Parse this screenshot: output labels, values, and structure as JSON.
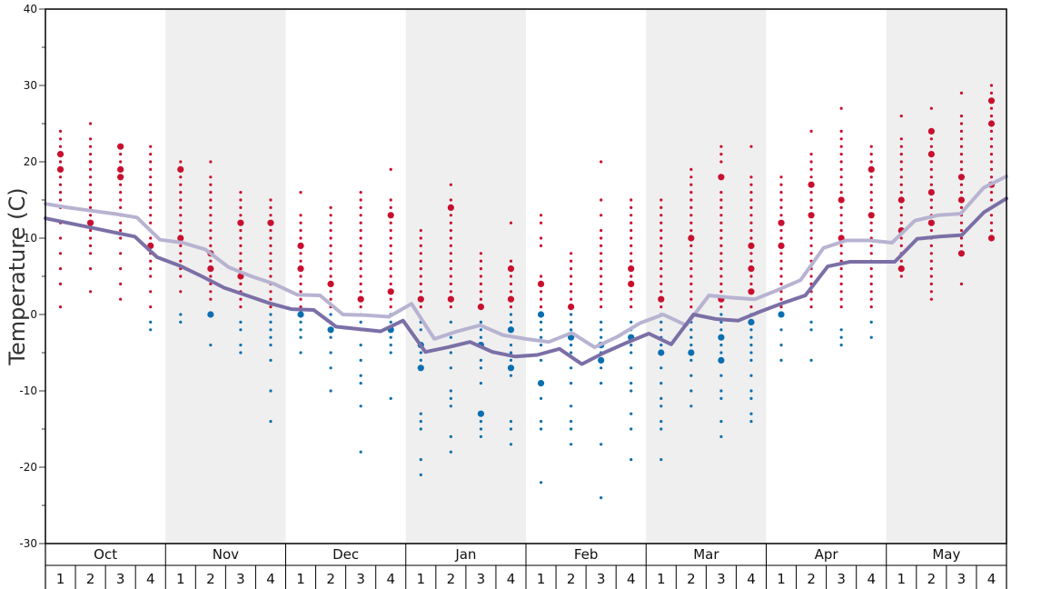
{
  "chart_data": {
    "type": "scatter",
    "ylabel": "Temperature (C)",
    "ylim": [
      -30,
      40
    ],
    "yticks": [
      -30,
      -20,
      -10,
      0,
      10,
      20,
      30,
      40
    ],
    "months": [
      "Oct",
      "Nov",
      "Dec",
      "Jan",
      "Feb",
      "Mar",
      "Apr",
      "May"
    ],
    "week_labels": [
      "1",
      "2",
      "3",
      "4"
    ],
    "colors": {
      "warm": "#c8102e",
      "cold": "#0a6fb0",
      "line_light": "#b7b3d1",
      "line_dark": "#7b6fa6",
      "band": "#efefef"
    },
    "line_light": [
      14.5,
      14,
      13.6,
      13.2,
      12.7,
      9.8,
      9.4,
      8.5,
      6.2,
      5,
      4,
      2.6,
      2.5,
      0,
      -0.1,
      -0.3,
      1.4,
      -3.2,
      -2.2,
      -1.4,
      -2.7,
      -3.2,
      -3.6,
      -2.4,
      -4.3,
      -2.9,
      -1.1,
      0,
      -1.4,
      2.5,
      2.2,
      2,
      3.2,
      4.5,
      8.7,
      9.7,
      9.7,
      9.4,
      12.3,
      13,
      13.2,
      16.6,
      18.1
    ],
    "line_dark": [
      12.6,
      12,
      11.4,
      10.8,
      10.2,
      7.5,
      6.4,
      5,
      3.5,
      2.5,
      1.5,
      0.7,
      0.6,
      -1.6,
      -1.9,
      -2.2,
      -0.8,
      -4.9,
      -4.3,
      -3.6,
      -4.9,
      -5.5,
      -5.3,
      -4.5,
      -6.5,
      -5,
      -3.7,
      -2.5,
      -3.9,
      0,
      -0.6,
      -0.8,
      0.4,
      1.5,
      2.5,
      6.3,
      6.9,
      6.9,
      6.9,
      9.9,
      10.2,
      10.4,
      13.4,
      15.2
    ],
    "points": [
      [
        1,
        [
          1,
          4,
          6,
          8,
          10,
          12,
          14,
          15,
          16,
          17,
          18,
          19,
          19,
          20,
          20,
          21,
          21,
          22,
          23,
          24
        ],
        []
      ],
      [
        2,
        [
          3,
          6,
          8,
          9,
          10,
          11,
          12,
          12,
          13,
          14,
          15,
          16,
          17,
          18,
          19,
          20,
          20,
          21,
          22,
          23,
          25
        ],
        []
      ],
      [
        3,
        [
          2,
          4,
          6,
          8,
          10,
          11,
          12,
          13,
          14,
          15,
          16,
          17,
          18,
          18,
          19,
          19,
          20,
          21,
          22,
          22
        ],
        []
      ],
      [
        4,
        [
          1,
          3,
          5,
          6,
          7,
          8,
          9,
          10,
          11,
          12,
          13,
          14,
          15,
          16,
          17,
          18,
          19,
          20,
          21,
          22
        ],
        [
          -1,
          -2
        ]
      ],
      [
        5,
        [
          3,
          5,
          6,
          7,
          8,
          9,
          10,
          11,
          12,
          13,
          14,
          15,
          16,
          17,
          18,
          19,
          19,
          20
        ],
        [
          0,
          -1
        ]
      ],
      [
        6,
        [
          2,
          3,
          4,
          5,
          6,
          6,
          7,
          8,
          9,
          10,
          11,
          12,
          13,
          14,
          15,
          16,
          17,
          18,
          20
        ],
        [
          0,
          0,
          -4
        ]
      ],
      [
        7,
        [
          1,
          2,
          3,
          4,
          5,
          5,
          6,
          7,
          8,
          9,
          10,
          11,
          12,
          12,
          13,
          14,
          15,
          16
        ],
        [
          -1,
          -2,
          -4,
          -5
        ]
      ],
      [
        8,
        [
          1,
          2,
          3,
          4,
          5,
          6,
          7,
          8,
          9,
          10,
          11,
          12,
          12,
          13,
          14,
          15
        ],
        [
          0,
          -1,
          -2,
          -3,
          -4,
          -6,
          -10,
          -14
        ]
      ],
      [
        9,
        [
          1,
          2,
          3,
          4,
          5,
          6,
          6,
          7,
          8,
          9,
          9,
          10,
          11,
          12,
          13,
          16
        ],
        [
          0,
          -1,
          -2,
          -3,
          -5
        ]
      ],
      [
        10,
        [
          1,
          2,
          3,
          4,
          4,
          5,
          6,
          7,
          8,
          9,
          10,
          11,
          12,
          13,
          14
        ],
        [
          0,
          -1,
          -2,
          -3,
          -5,
          -7,
          -10
        ]
      ],
      [
        11,
        [
          1,
          2,
          2,
          3,
          4,
          5,
          6,
          7,
          8,
          8,
          9,
          10,
          11,
          12,
          13,
          14,
          15,
          16
        ],
        [
          0,
          -1,
          -2,
          -4,
          -6,
          -8,
          -9,
          -12,
          -18
        ]
      ],
      [
        12,
        [
          1,
          2,
          3,
          3,
          4,
          5,
          6,
          7,
          8,
          9,
          10,
          11,
          12,
          13,
          14,
          15,
          19
        ],
        [
          0,
          -1,
          -2,
          -3,
          -4,
          -5,
          -11
        ]
      ],
      [
        13,
        [
          1,
          2,
          3,
          4,
          5,
          6,
          7,
          8,
          9,
          10,
          11
        ],
        [
          -1,
          -2,
          -4,
          -5,
          -6,
          -7,
          -13,
          -14,
          -15,
          -19,
          -21
        ]
      ],
      [
        14,
        [
          1,
          2,
          3,
          4,
          5,
          6,
          7,
          8,
          9,
          10,
          11,
          12,
          13,
          14,
          15,
          17
        ],
        [
          -1,
          -3,
          -5,
          -7,
          -10,
          -11,
          -12,
          -16,
          -18
        ]
      ],
      [
        15,
        [
          1,
          2,
          3,
          4,
          5,
          6,
          7,
          8
        ],
        [
          -1,
          -2,
          -3,
          -4,
          -6,
          -7,
          -9,
          -13,
          -14,
          -15,
          -16
        ]
      ],
      [
        16,
        [
          1,
          2,
          2,
          3,
          4,
          5,
          6,
          6,
          7,
          12
        ],
        [
          0,
          -1,
          -2,
          -4,
          -5,
          -6,
          -7,
          -8,
          -14,
          -15,
          -17
        ]
      ],
      [
        17,
        [
          1,
          2,
          3,
          4,
          5,
          9,
          10,
          12,
          13
        ],
        [
          0,
          0,
          -1,
          -2,
          -3,
          -4,
          -6,
          -9,
          -11,
          -14,
          -15,
          -22
        ]
      ],
      [
        18,
        [
          1,
          2,
          3,
          4,
          5,
          6,
          7,
          8
        ],
        [
          0,
          -1,
          -2,
          -3,
          -4,
          -5,
          -7,
          -9,
          -12,
          -14,
          -15,
          -17
        ]
      ],
      [
        19,
        [
          1,
          2,
          3,
          4,
          5,
          6,
          7,
          8,
          9,
          10,
          11,
          13,
          15,
          20
        ],
        [
          -1,
          -2,
          -3,
          -4,
          -4,
          -5,
          -7,
          -9,
          -17,
          -24
        ]
      ],
      [
        20,
        [
          1,
          2,
          3,
          4,
          5,
          5,
          6,
          7,
          8,
          9,
          10,
          11,
          12,
          13,
          14,
          15
        ],
        [
          -1,
          -2,
          -3,
          -3,
          -4,
          -5,
          -7,
          -9,
          -10,
          -13,
          -15,
          -19
        ]
      ],
      [
        21,
        [
          1,
          2,
          3,
          4,
          5,
          6,
          7,
          8,
          9,
          10,
          11,
          12,
          13,
          14,
          15
        ],
        [
          0,
          -1,
          -2,
          -3,
          -4,
          -5,
          -7,
          -9,
          -11,
          -12,
          -14,
          -15,
          -19
        ]
      ],
      [
        22,
        [
          1,
          2,
          3,
          4,
          5,
          6,
          7,
          8,
          9,
          10,
          11,
          12,
          13,
          14,
          15,
          16,
          17,
          18,
          19
        ],
        [
          -1,
          -2,
          -3,
          -4,
          -5,
          -5,
          -6,
          -8,
          -10,
          -12
        ]
      ],
      [
        23,
        [
          1,
          2,
          2,
          3,
          4,
          5,
          6,
          7,
          8,
          9,
          10,
          11,
          12,
          13,
          14,
          15,
          16,
          18,
          20,
          21,
          22
        ],
        [
          0,
          -1,
          -2,
          -3,
          -4,
          -5,
          -6,
          -8,
          -10,
          -11,
          -14,
          -16
        ]
      ],
      [
        24,
        [
          1,
          2,
          3,
          4,
          5,
          6,
          7,
          8,
          9,
          9,
          10,
          11,
          12,
          13,
          14,
          15,
          16,
          17,
          18,
          22
        ],
        [
          0,
          -1,
          -2,
          -3,
          -4,
          -5,
          -6,
          -8,
          -10,
          -11,
          -13,
          -14
        ]
      ],
      [
        25,
        [
          1,
          2,
          3,
          4,
          5,
          6,
          7,
          8,
          9,
          10,
          11,
          12,
          13,
          14,
          15,
          16,
          17,
          18
        ],
        [
          0,
          -2,
          -4,
          -6
        ]
      ],
      [
        26,
        [
          1,
          2,
          3,
          4,
          5,
          6,
          7,
          8,
          9,
          10,
          11,
          12,
          13,
          14,
          15,
          16,
          17,
          17,
          18,
          19,
          20,
          21,
          24
        ],
        [
          -1,
          -2,
          -6
        ]
      ],
      [
        27,
        [
          1,
          2,
          3,
          4,
          5,
          6,
          7,
          8,
          9,
          10,
          10,
          11,
          12,
          13,
          14,
          15,
          16,
          17,
          18,
          19,
          20,
          21,
          22,
          23,
          24,
          27
        ],
        [
          -2,
          -3,
          -4
        ]
      ],
      [
        28,
        [
          1,
          2,
          3,
          4,
          5,
          6,
          7,
          8,
          9,
          10,
          11,
          12,
          13,
          13,
          14,
          15,
          16,
          17,
          18,
          19,
          20,
          21,
          22
        ],
        [
          -1,
          -3
        ]
      ],
      [
        29,
        [
          5,
          6,
          6,
          7,
          8,
          9,
          10,
          11,
          12,
          13,
          14,
          15,
          16,
          17,
          18,
          19,
          20,
          21,
          22,
          23,
          26
        ],
        []
      ],
      [
        30,
        [
          2,
          3,
          4,
          5,
          6,
          7,
          8,
          9,
          10,
          11,
          12,
          13,
          14,
          15,
          16,
          17,
          18,
          19,
          20,
          21,
          22,
          23,
          24,
          27
        ],
        []
      ],
      [
        31,
        [
          4,
          8,
          9,
          10,
          11,
          12,
          13,
          14,
          15,
          16,
          17,
          18,
          19,
          20,
          21,
          22,
          23,
          24,
          25,
          26,
          29
        ],
        []
      ],
      [
        32,
        [
          10,
          11,
          12,
          13,
          14,
          15,
          16,
          17,
          18,
          19,
          20,
          21,
          22,
          23,
          24,
          25,
          26,
          27,
          28,
          29,
          30
        ],
        []
      ]
    ],
    "big_points": [
      [
        1,
        19,
        "warm"
      ],
      [
        1,
        21,
        "warm"
      ],
      [
        2,
        12,
        "warm"
      ],
      [
        3,
        18,
        "warm"
      ],
      [
        3,
        19,
        "warm"
      ],
      [
        3,
        22,
        "warm"
      ],
      [
        4,
        9,
        "warm"
      ],
      [
        5,
        10,
        "warm"
      ],
      [
        5,
        19,
        "warm"
      ],
      [
        6,
        6,
        "warm"
      ],
      [
        6,
        8,
        "warm"
      ],
      [
        7,
        5,
        "warm"
      ],
      [
        7,
        12,
        "warm"
      ],
      [
        8,
        12,
        "warm"
      ],
      [
        9,
        6,
        "warm"
      ],
      [
        9,
        9,
        "warm"
      ],
      [
        10,
        4,
        "warm"
      ],
      [
        11,
        2,
        "warm"
      ],
      [
        12,
        3,
        "warm"
      ],
      [
        12,
        13,
        "warm"
      ],
      [
        13,
        2,
        "warm"
      ],
      [
        14,
        2,
        "warm"
      ],
      [
        14,
        14,
        "warm"
      ],
      [
        15,
        1,
        "warm"
      ],
      [
        16,
        6,
        "warm"
      ],
      [
        16,
        2,
        "warm"
      ],
      [
        17,
        4,
        "warm"
      ],
      [
        18,
        1,
        "warm"
      ],
      [
        20,
        4,
        "warm"
      ],
      [
        20,
        6,
        "warm"
      ],
      [
        21,
        2,
        "warm"
      ],
      [
        22,
        10,
        "warm"
      ],
      [
        23,
        2,
        "warm"
      ],
      [
        23,
        18,
        "warm"
      ],
      [
        24,
        3,
        "warm"
      ],
      [
        24,
        6,
        "warm"
      ],
      [
        24,
        9,
        "warm"
      ],
      [
        25,
        9,
        "warm"
      ],
      [
        25,
        12,
        "warm"
      ],
      [
        26,
        13,
        "warm"
      ],
      [
        26,
        17,
        "warm"
      ],
      [
        27,
        10,
        "warm"
      ],
      [
        27,
        15,
        "warm"
      ],
      [
        28,
        13,
        "warm"
      ],
      [
        28,
        19,
        "warm"
      ],
      [
        29,
        6,
        "warm"
      ],
      [
        29,
        11,
        "warm"
      ],
      [
        29,
        15,
        "warm"
      ],
      [
        30,
        12,
        "warm"
      ],
      [
        30,
        16,
        "warm"
      ],
      [
        30,
        21,
        "warm"
      ],
      [
        30,
        24,
        "warm"
      ],
      [
        31,
        8,
        "warm"
      ],
      [
        31,
        15,
        "warm"
      ],
      [
        31,
        18,
        "warm"
      ],
      [
        32,
        10,
        "warm"
      ],
      [
        32,
        17,
        "warm"
      ],
      [
        32,
        25,
        "warm"
      ],
      [
        32,
        28,
        "warm"
      ],
      [
        6,
        0,
        "cold"
      ],
      [
        9,
        0,
        "cold"
      ],
      [
        10,
        -2,
        "cold"
      ],
      [
        12,
        -2,
        "cold"
      ],
      [
        13,
        -4,
        "cold"
      ],
      [
        13,
        -7,
        "cold"
      ],
      [
        15,
        -4,
        "cold"
      ],
      [
        15,
        -13,
        "cold"
      ],
      [
        16,
        -2,
        "cold"
      ],
      [
        16,
        -7,
        "cold"
      ],
      [
        17,
        0,
        "cold"
      ],
      [
        17,
        -9,
        "cold"
      ],
      [
        18,
        -3,
        "cold"
      ],
      [
        19,
        -4,
        "cold"
      ],
      [
        19,
        -6,
        "cold"
      ],
      [
        20,
        -3,
        "cold"
      ],
      [
        21,
        -5,
        "cold"
      ],
      [
        22,
        -5,
        "cold"
      ],
      [
        23,
        -3,
        "cold"
      ],
      [
        23,
        -6,
        "cold"
      ],
      [
        24,
        -1,
        "cold"
      ],
      [
        25,
        0,
        "cold"
      ]
    ]
  }
}
